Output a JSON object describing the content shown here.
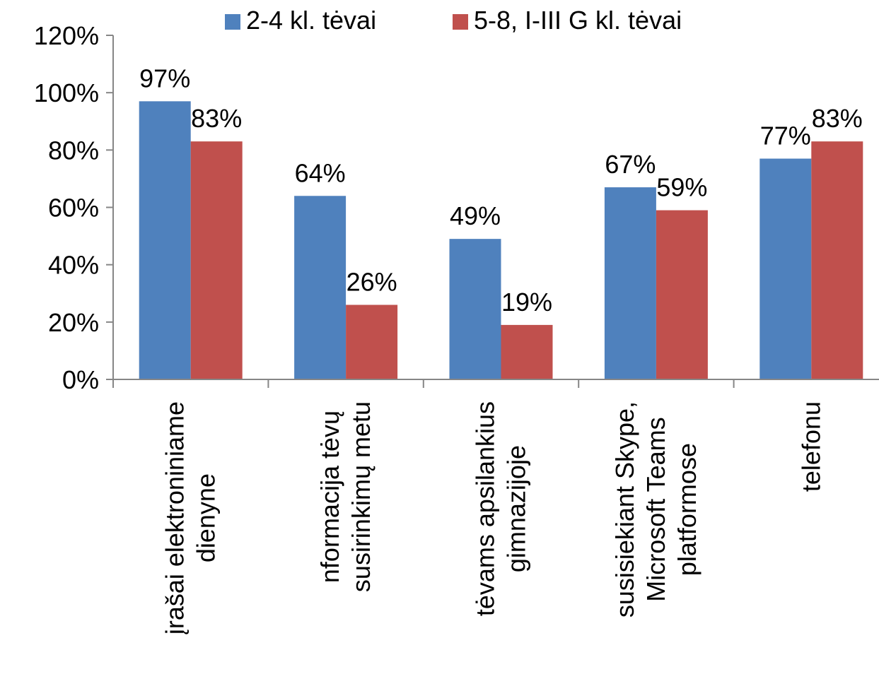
{
  "chart_data": {
    "type": "bar",
    "categories": [
      [
        "įrašai elektroniniame",
        "dienyne"
      ],
      [
        "nformacija tėvų",
        "susirinkimų metu"
      ],
      [
        "tėvams apsilankius",
        "gimnazijoje"
      ],
      [
        "susisiekiant Skype,",
        "Microsoft Teams",
        "platformose"
      ],
      [
        "telefonu"
      ]
    ],
    "series": [
      {
        "name": "2-4 kl. tėvai",
        "color": "#4F81BD",
        "values": [
          97,
          64,
          49,
          67,
          77
        ]
      },
      {
        "name": "5-8, I-III G kl. tėvai",
        "color": "#C0504D",
        "values": [
          83,
          26,
          19,
          59,
          83
        ]
      }
    ],
    "value_suffix": "%",
    "ylim": [
      0,
      120
    ],
    "yticks": [
      "0%",
      "20%",
      "40%",
      "60%",
      "80%",
      "100%",
      "120%"
    ],
    "grid": false,
    "legend_position": "top"
  }
}
